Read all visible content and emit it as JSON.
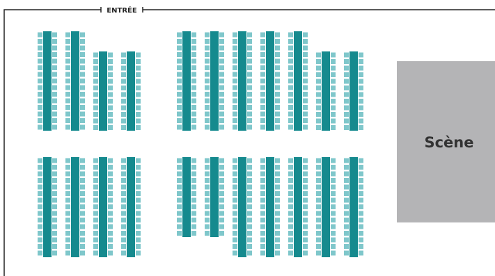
{
  "entrance": {
    "label": "ENTRÉE"
  },
  "stage": {
    "label": "Scène"
  }
}
